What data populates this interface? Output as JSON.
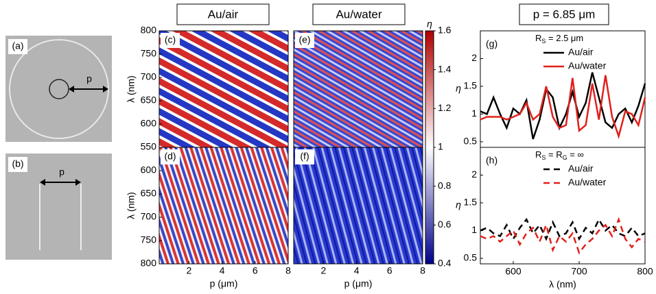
{
  "images": [
    {
      "label": "(a)",
      "arrow": "p"
    },
    {
      "label": "(b)",
      "arrow": "p"
    }
  ],
  "headers": [
    "Au/air",
    "Au/water",
    "p = 6.85 μm"
  ],
  "colorbar": {
    "label": "η",
    "lim": [
      0.4,
      1.6
    ],
    "ticks": [
      0.4,
      0.6,
      0.8,
      1,
      1.2,
      1.4,
      1.6
    ],
    "colors": [
      "#00008b",
      "#ffffff",
      "#b00000"
    ]
  },
  "chart_data": [
    {
      "type": "heatmap",
      "panel": "(c)",
      "ylabel": "λ (nm)",
      "ylim": [
        550,
        800
      ],
      "yticks": [
        550,
        600,
        650,
        700,
        750,
        800
      ],
      "xlim": [
        0.2,
        8
      ]
    },
    {
      "type": "heatmap",
      "panel": "(e)",
      "ylim": [
        550,
        800
      ],
      "xlim": [
        0.2,
        8
      ]
    },
    {
      "type": "heatmap",
      "panel": "(d)",
      "ylabel": "λ (nm)",
      "xlabel": "p (μm)",
      "ylim": [
        550,
        800
      ],
      "y_reversed": true,
      "yticks": [
        600,
        650,
        700,
        750,
        800
      ],
      "xlim": [
        0.2,
        8
      ],
      "xticks": [
        2,
        4,
        6,
        8
      ]
    },
    {
      "type": "heatmap",
      "panel": "(f)",
      "xlabel": "p (μm)",
      "ylim": [
        550,
        800
      ],
      "y_reversed": true,
      "xlim": [
        0.2,
        8
      ],
      "xticks": [
        2,
        4,
        6,
        8
      ]
    },
    {
      "type": "line",
      "panel": "(g)",
      "annotation": [
        "R",
        "S",
        " = 2.5 μm"
      ],
      "ylabel": "η",
      "xlim": [
        550,
        800
      ],
      "ylim": [
        0.4,
        2.5
      ],
      "yticks": [
        0.5,
        1,
        1.5,
        2
      ],
      "x": [
        550,
        560,
        570,
        580,
        590,
        600,
        610,
        620,
        630,
        640,
        650,
        660,
        670,
        680,
        690,
        700,
        710,
        720,
        730,
        740,
        750,
        760,
        770,
        780,
        790,
        800
      ],
      "series": [
        {
          "name": "Au/air",
          "color": "#000000",
          "values": [
            1.05,
            1.0,
            1.3,
            1.0,
            0.75,
            1.1,
            1.0,
            1.25,
            0.55,
            0.9,
            1.45,
            1.3,
            0.75,
            1.0,
            1.4,
            0.95,
            1.2,
            1.75,
            1.3,
            0.85,
            0.75,
            1.0,
            1.1,
            0.85,
            1.15,
            1.55
          ]
        },
        {
          "name": "Au/water",
          "color": "#e0201b",
          "values": [
            0.9,
            0.95,
            0.95,
            0.95,
            0.9,
            0.95,
            1.0,
            1.2,
            0.9,
            1.0,
            1.5,
            0.95,
            0.75,
            0.8,
            1.65,
            0.7,
            0.8,
            1.55,
            0.9,
            1.7,
            0.95,
            0.6,
            1.05,
            1.0,
            0.8,
            1.3
          ]
        }
      ]
    },
    {
      "type": "line",
      "panel": "(h)",
      "annotation": [
        "R",
        "S",
        " = R",
        "G",
        " = ∞"
      ],
      "ylabel": "η",
      "xlabel": "λ (nm)",
      "xlim": [
        550,
        800
      ],
      "ylim": [
        0.4,
        2.5
      ],
      "yticks": [
        0.5,
        1,
        1.5,
        2
      ],
      "xticks": [
        600,
        700,
        800
      ],
      "dashed": true,
      "x": [
        550,
        560,
        570,
        580,
        590,
        600,
        610,
        620,
        630,
        640,
        650,
        660,
        670,
        680,
        690,
        700,
        710,
        720,
        730,
        740,
        750,
        760,
        770,
        780,
        790,
        800
      ],
      "series": [
        {
          "name": "Au/air",
          "color": "#000000",
          "values": [
            1.0,
            1.05,
            0.95,
            0.9,
            1.1,
            0.85,
            1.05,
            1.2,
            0.95,
            1.1,
            0.85,
            1.15,
            0.9,
            0.95,
            1.15,
            0.85,
            1.05,
            0.95,
            1.2,
            1.0,
            1.1,
            0.95,
            0.9,
            1.05,
            0.9,
            0.95
          ]
        },
        {
          "name": "Au/water",
          "color": "#e0201b",
          "values": [
            0.9,
            0.85,
            0.9,
            0.8,
            0.9,
            1.0,
            0.75,
            0.95,
            1.05,
            0.8,
            1.1,
            0.65,
            0.9,
            0.8,
            0.95,
            0.6,
            0.75,
            0.85,
            1.0,
            1.1,
            0.9,
            1.2,
            0.85,
            0.7,
            0.85,
            0.8
          ]
        }
      ]
    }
  ]
}
